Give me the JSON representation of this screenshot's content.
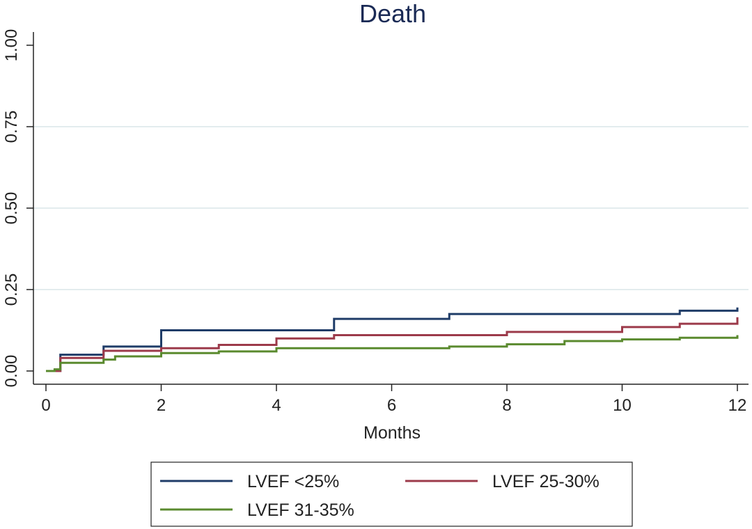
{
  "chart_data": {
    "type": "line",
    "step": true,
    "title": "Death",
    "xlabel": "Months",
    "ylabel": "",
    "xlim": [
      0,
      12
    ],
    "ylim": [
      0,
      1
    ],
    "xticks": [
      "0",
      "2",
      "4",
      "6",
      "8",
      "10",
      "12"
    ],
    "yticks": [
      "0.00",
      "0.25",
      "0.50",
      "0.75",
      "1.00"
    ],
    "grid": true,
    "legend_position": "bottom",
    "series": [
      {
        "name": "LVEF <25%",
        "color": "#1f3c68",
        "points": [
          [
            0,
            0
          ],
          [
            0.25,
            0.05
          ],
          [
            1,
            0.075
          ],
          [
            2,
            0.125
          ],
          [
            5,
            0.16
          ],
          [
            7,
            0.175
          ],
          [
            11,
            0.185
          ],
          [
            12,
            0.195
          ]
        ]
      },
      {
        "name": "LVEF 25-30%",
        "color": "#9c3a4a",
        "points": [
          [
            0,
            0
          ],
          [
            0.25,
            0.04
          ],
          [
            1,
            0.062
          ],
          [
            2,
            0.07
          ],
          [
            3,
            0.08
          ],
          [
            4,
            0.1
          ],
          [
            5,
            0.11
          ],
          [
            8,
            0.12
          ],
          [
            10,
            0.135
          ],
          [
            11,
            0.145
          ],
          [
            12,
            0.165
          ]
        ]
      },
      {
        "name": "LVEF 31-35%",
        "color": "#5a8a2e",
        "points": [
          [
            0,
            0
          ],
          [
            0.15,
            0.005
          ],
          [
            0.25,
            0.025
          ],
          [
            1,
            0.035
          ],
          [
            1.2,
            0.045
          ],
          [
            2,
            0.055
          ],
          [
            3,
            0.06
          ],
          [
            4,
            0.07
          ],
          [
            7,
            0.075
          ],
          [
            8,
            0.082
          ],
          [
            9,
            0.092
          ],
          [
            10,
            0.097
          ],
          [
            11,
            0.102
          ],
          [
            12,
            0.11
          ]
        ]
      }
    ]
  }
}
